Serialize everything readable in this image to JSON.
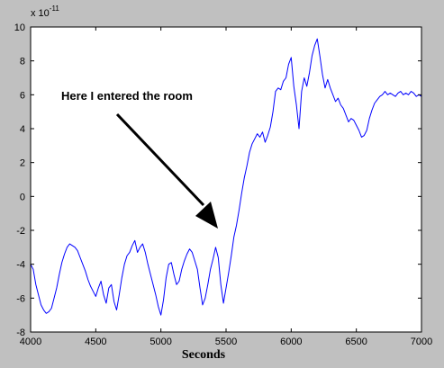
{
  "chart_data": {
    "type": "line",
    "title": "",
    "xlabel": "Seconds",
    "ylabel": "",
    "y_scale_label": "x 10",
    "y_scale_exponent": "-11",
    "xlim": [
      4000,
      7000
    ],
    "ylim": [
      -8,
      10
    ],
    "x_ticks": [
      4000,
      4500,
      5000,
      5500,
      6000,
      6500,
      7000
    ],
    "y_ticks": [
      -8,
      -6,
      -4,
      -2,
      0,
      2,
      4,
      6,
      8,
      10
    ],
    "grid": false,
    "legend": "none",
    "line_color": "#0000ff",
    "annotation": {
      "text": "Here I entered the room",
      "arrow_to": [
        5480,
        -1.8
      ]
    },
    "series": [
      {
        "points": [
          [
            4000,
            -4.0
          ],
          [
            4020,
            -4.3
          ],
          [
            4040,
            -5.2
          ],
          [
            4060,
            -5.8
          ],
          [
            4080,
            -6.4
          ],
          [
            4100,
            -6.7
          ],
          [
            4120,
            -6.9
          ],
          [
            4140,
            -6.8
          ],
          [
            4160,
            -6.6
          ],
          [
            4180,
            -6.0
          ],
          [
            4200,
            -5.4
          ],
          [
            4220,
            -4.6
          ],
          [
            4240,
            -3.9
          ],
          [
            4260,
            -3.4
          ],
          [
            4280,
            -3.0
          ],
          [
            4300,
            -2.8
          ],
          [
            4320,
            -2.9
          ],
          [
            4340,
            -3.0
          ],
          [
            4360,
            -3.2
          ],
          [
            4380,
            -3.6
          ],
          [
            4400,
            -4.0
          ],
          [
            4420,
            -4.4
          ],
          [
            4440,
            -4.9
          ],
          [
            4460,
            -5.3
          ],
          [
            4480,
            -5.6
          ],
          [
            4500,
            -5.9
          ],
          [
            4520,
            -5.4
          ],
          [
            4540,
            -5.0
          ],
          [
            4560,
            -5.8
          ],
          [
            4580,
            -6.3
          ],
          [
            4600,
            -5.4
          ],
          [
            4620,
            -5.2
          ],
          [
            4640,
            -6.2
          ],
          [
            4660,
            -6.7
          ],
          [
            4680,
            -5.8
          ],
          [
            4700,
            -4.8
          ],
          [
            4720,
            -4.0
          ],
          [
            4740,
            -3.5
          ],
          [
            4760,
            -3.3
          ],
          [
            4780,
            -2.9
          ],
          [
            4800,
            -2.6
          ],
          [
            4820,
            -3.3
          ],
          [
            4840,
            -3.0
          ],
          [
            4860,
            -2.8
          ],
          [
            4880,
            -3.3
          ],
          [
            4900,
            -4.0
          ],
          [
            4920,
            -4.6
          ],
          [
            4940,
            -5.2
          ],
          [
            4960,
            -5.8
          ],
          [
            4980,
            -6.5
          ],
          [
            5000,
            -7.0
          ],
          [
            5020,
            -6.1
          ],
          [
            5040,
            -4.8
          ],
          [
            5060,
            -4.0
          ],
          [
            5080,
            -3.9
          ],
          [
            5100,
            -4.6
          ],
          [
            5120,
            -5.2
          ],
          [
            5140,
            -5.0
          ],
          [
            5160,
            -4.3
          ],
          [
            5180,
            -3.8
          ],
          [
            5200,
            -3.4
          ],
          [
            5220,
            -3.1
          ],
          [
            5240,
            -3.3
          ],
          [
            5260,
            -3.8
          ],
          [
            5280,
            -4.3
          ],
          [
            5300,
            -5.4
          ],
          [
            5320,
            -6.4
          ],
          [
            5340,
            -6.0
          ],
          [
            5360,
            -5.2
          ],
          [
            5380,
            -4.3
          ],
          [
            5400,
            -3.7
          ],
          [
            5420,
            -3.0
          ],
          [
            5440,
            -3.6
          ],
          [
            5460,
            -5.2
          ],
          [
            5480,
            -6.3
          ],
          [
            5500,
            -5.4
          ],
          [
            5520,
            -4.5
          ],
          [
            5540,
            -3.5
          ],
          [
            5560,
            -2.4
          ],
          [
            5580,
            -1.7
          ],
          [
            5600,
            -0.8
          ],
          [
            5620,
            0.2
          ],
          [
            5640,
            1.1
          ],
          [
            5660,
            1.8
          ],
          [
            5680,
            2.6
          ],
          [
            5700,
            3.1
          ],
          [
            5720,
            3.4
          ],
          [
            5740,
            3.7
          ],
          [
            5760,
            3.5
          ],
          [
            5780,
            3.8
          ],
          [
            5800,
            3.2
          ],
          [
            5820,
            3.6
          ],
          [
            5840,
            4.1
          ],
          [
            5860,
            5.0
          ],
          [
            5880,
            6.2
          ],
          [
            5900,
            6.4
          ],
          [
            5920,
            6.3
          ],
          [
            5940,
            6.8
          ],
          [
            5960,
            7.0
          ],
          [
            5980,
            7.8
          ],
          [
            6000,
            8.2
          ],
          [
            6020,
            6.5
          ],
          [
            6040,
            5.4
          ],
          [
            6060,
            4.0
          ],
          [
            6080,
            6.2
          ],
          [
            6100,
            7.0
          ],
          [
            6120,
            6.5
          ],
          [
            6140,
            7.3
          ],
          [
            6160,
            8.3
          ],
          [
            6180,
            8.9
          ],
          [
            6200,
            9.3
          ],
          [
            6220,
            8.3
          ],
          [
            6240,
            7.2
          ],
          [
            6260,
            6.4
          ],
          [
            6280,
            6.9
          ],
          [
            6300,
            6.4
          ],
          [
            6320,
            6.0
          ],
          [
            6340,
            5.6
          ],
          [
            6360,
            5.8
          ],
          [
            6380,
            5.4
          ],
          [
            6400,
            5.2
          ],
          [
            6420,
            4.8
          ],
          [
            6440,
            4.4
          ],
          [
            6460,
            4.6
          ],
          [
            6480,
            4.5
          ],
          [
            6500,
            4.2
          ],
          [
            6520,
            3.9
          ],
          [
            6540,
            3.5
          ],
          [
            6560,
            3.6
          ],
          [
            6580,
            3.9
          ],
          [
            6600,
            4.6
          ],
          [
            6620,
            5.1
          ],
          [
            6640,
            5.5
          ],
          [
            6660,
            5.7
          ],
          [
            6680,
            5.9
          ],
          [
            6700,
            6.0
          ],
          [
            6720,
            6.2
          ],
          [
            6740,
            6.0
          ],
          [
            6760,
            6.1
          ],
          [
            6780,
            6.0
          ],
          [
            6800,
            5.9
          ],
          [
            6820,
            6.1
          ],
          [
            6840,
            6.2
          ],
          [
            6860,
            6.0
          ],
          [
            6880,
            6.1
          ],
          [
            6900,
            6.0
          ],
          [
            6920,
            6.2
          ],
          [
            6940,
            6.1
          ],
          [
            6960,
            5.9
          ],
          [
            6980,
            6.0
          ],
          [
            7000,
            5.9
          ]
        ]
      }
    ]
  }
}
